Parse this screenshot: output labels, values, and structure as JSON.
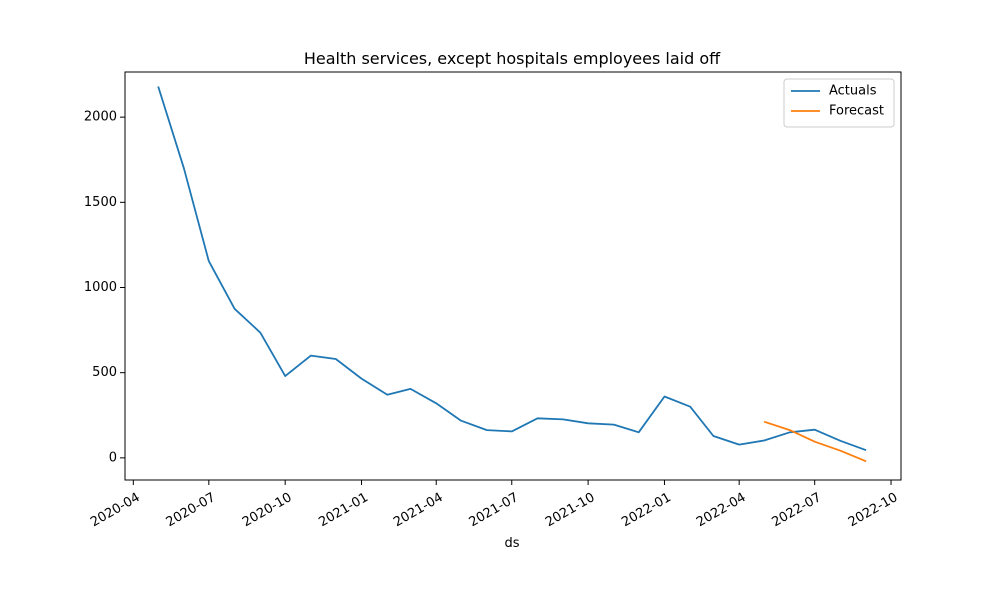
{
  "chart_data": {
    "type": "line",
    "title": "Health services, except hospitals employees laid off",
    "xlabel": "ds",
    "ylabel": "",
    "x_axis_type": "date",
    "xlim": [
      "2020-03-22",
      "2022-10-13"
    ],
    "ylim": [
      -130,
      2265
    ],
    "x_ticks": [
      {
        "date": "2020-04-01",
        "label": "2020-04"
      },
      {
        "date": "2020-07-01",
        "label": "2020-07"
      },
      {
        "date": "2020-10-01",
        "label": "2020-10"
      },
      {
        "date": "2021-01-01",
        "label": "2021-01"
      },
      {
        "date": "2021-04-01",
        "label": "2021-04"
      },
      {
        "date": "2021-07-01",
        "label": "2021-07"
      },
      {
        "date": "2021-10-01",
        "label": "2021-10"
      },
      {
        "date": "2022-01-01",
        "label": "2022-01"
      },
      {
        "date": "2022-04-01",
        "label": "2022-04"
      },
      {
        "date": "2022-07-01",
        "label": "2022-07"
      },
      {
        "date": "2022-10-01",
        "label": "2022-10"
      }
    ],
    "y_ticks": [
      {
        "value": 0,
        "label": "0"
      },
      {
        "value": 500,
        "label": "500"
      },
      {
        "value": 1000,
        "label": "1000"
      },
      {
        "value": 1500,
        "label": "1500"
      },
      {
        "value": 2000,
        "label": "2000"
      }
    ],
    "grid": false,
    "legend_position": "top-right",
    "series": [
      {
        "name": "Actuals",
        "color": "#1f77b4",
        "points": [
          {
            "x": "2020-05-01",
            "y": 2180
          },
          {
            "x": "2020-06-01",
            "y": 1700
          },
          {
            "x": "2020-07-01",
            "y": 1155
          },
          {
            "x": "2020-08-01",
            "y": 875
          },
          {
            "x": "2020-09-01",
            "y": 735
          },
          {
            "x": "2020-10-01",
            "y": 480
          },
          {
            "x": "2020-11-01",
            "y": 600
          },
          {
            "x": "2020-12-01",
            "y": 580
          },
          {
            "x": "2021-01-01",
            "y": 465
          },
          {
            "x": "2021-02-01",
            "y": 370
          },
          {
            "x": "2021-03-01",
            "y": 405
          },
          {
            "x": "2021-04-01",
            "y": 320
          },
          {
            "x": "2021-05-01",
            "y": 218
          },
          {
            "x": "2021-06-01",
            "y": 163
          },
          {
            "x": "2021-07-01",
            "y": 155
          },
          {
            "x": "2021-08-01",
            "y": 232
          },
          {
            "x": "2021-09-01",
            "y": 226
          },
          {
            "x": "2021-10-01",
            "y": 203
          },
          {
            "x": "2021-11-01",
            "y": 195
          },
          {
            "x": "2021-12-01",
            "y": 150
          },
          {
            "x": "2022-01-01",
            "y": 360
          },
          {
            "x": "2022-02-01",
            "y": 300
          },
          {
            "x": "2022-03-01",
            "y": 128
          },
          {
            "x": "2022-04-01",
            "y": 78
          },
          {
            "x": "2022-05-01",
            "y": 102
          },
          {
            "x": "2022-06-01",
            "y": 150
          },
          {
            "x": "2022-07-01",
            "y": 165
          },
          {
            "x": "2022-08-01",
            "y": 100
          },
          {
            "x": "2022-09-01",
            "y": 45
          }
        ]
      },
      {
        "name": "Forecast",
        "color": "#ff7f0e",
        "points": [
          {
            "x": "2022-05-01",
            "y": 212
          },
          {
            "x": "2022-06-01",
            "y": 163
          },
          {
            "x": "2022-07-01",
            "y": 95
          },
          {
            "x": "2022-08-01",
            "y": 42
          },
          {
            "x": "2022-09-01",
            "y": -20
          }
        ]
      }
    ]
  }
}
